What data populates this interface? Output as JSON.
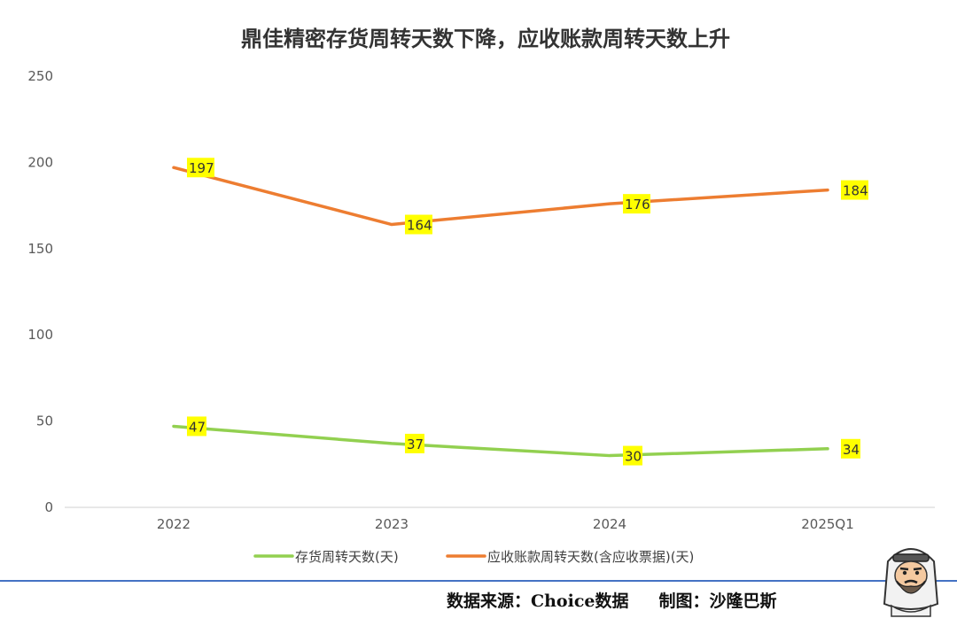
{
  "chart_data": {
    "type": "line",
    "title": "鼎佳精密存货周转天数下降，应收账款周转天数上升",
    "categories": [
      "2022",
      "2023",
      "2024",
      "2025Q1"
    ],
    "ylim": [
      0,
      250
    ],
    "yticks": [
      0,
      50,
      100,
      150,
      200,
      250
    ],
    "grid": false,
    "legend_position": "bottom",
    "series": [
      {
        "name": "存货周转天数(天)",
        "values": [
          47,
          37,
          30,
          34
        ],
        "color": "#92d050"
      },
      {
        "name": "应收账款周转天数(含应收票据)(天)",
        "values": [
          197,
          164,
          176,
          184
        ],
        "color": "#ed7d31"
      }
    ],
    "label_highlight_color": "#ffff00"
  },
  "footer": {
    "source": "数据来源：Choice数据",
    "credit": "制图：沙隆巴斯"
  },
  "mascot_icon": "bearded-man-mascot-icon"
}
